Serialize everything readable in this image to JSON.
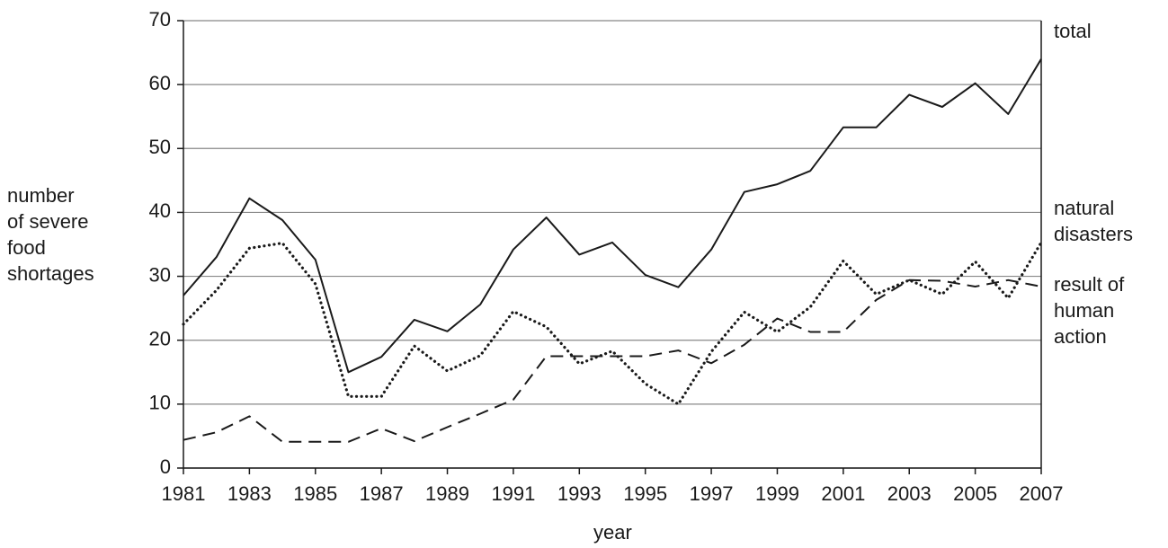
{
  "chart_data": {
    "type": "line",
    "xlabel": "year",
    "ylabel": "number\nof severe\nfood\nshortages",
    "x": [
      1981,
      1982,
      1983,
      1984,
      1985,
      1986,
      1987,
      1988,
      1989,
      1990,
      1991,
      1992,
      1993,
      1994,
      1995,
      1996,
      1997,
      1998,
      1999,
      2000,
      2001,
      2002,
      2003,
      2004,
      2005,
      2006,
      2007
    ],
    "series": [
      {
        "name": "total",
        "color": "#1a1a1a",
        "style": "solid",
        "values": [
          27,
          33,
          42.2,
          38.8,
          32.6,
          15,
          17.4,
          23.2,
          21.4,
          25.6,
          34.2,
          39.2,
          33.4,
          35.3,
          30.2,
          28.3,
          34.2,
          43.2,
          44.4,
          46.5,
          53.3,
          53.3,
          58.4,
          56.5,
          60.2,
          55.4,
          64
        ]
      },
      {
        "name": "natural\ndisasters",
        "color": "#1a1a1a",
        "style": "dotted",
        "values": [
          22.5,
          27.8,
          34.4,
          35.2,
          28.8,
          11.2,
          11.2,
          19.1,
          15.2,
          17.6,
          24.5,
          22.1,
          16.3,
          18.3,
          13.2,
          10,
          18.2,
          24.4,
          21.3,
          25.2,
          32.4,
          27.2,
          29.4,
          27.2,
          32.3,
          26.6,
          35.3
        ]
      },
      {
        "name": "result of\nhuman\naction",
        "color": "#1a1a1a",
        "style": "dashed",
        "values": [
          4.4,
          5.6,
          8.1,
          4.1,
          4.1,
          4.1,
          6.2,
          4.2,
          6.4,
          8.5,
          10.7,
          17.5,
          17.5,
          17.5,
          17.5,
          18.4,
          16.4,
          19.3,
          23.4,
          21.3,
          21.3,
          26.3,
          29.4,
          29.3,
          28.4,
          29.4,
          28.4
        ]
      }
    ],
    "xlim": [
      1981,
      2007
    ],
    "xticks": [
      1981,
      1983,
      1985,
      1987,
      1989,
      1991,
      1993,
      1995,
      1997,
      1999,
      2001,
      2003,
      2005,
      2007
    ],
    "ylim": [
      0,
      70
    ],
    "yticks": [
      0,
      10,
      20,
      30,
      40,
      50,
      60,
      70
    ],
    "grid": true
  }
}
